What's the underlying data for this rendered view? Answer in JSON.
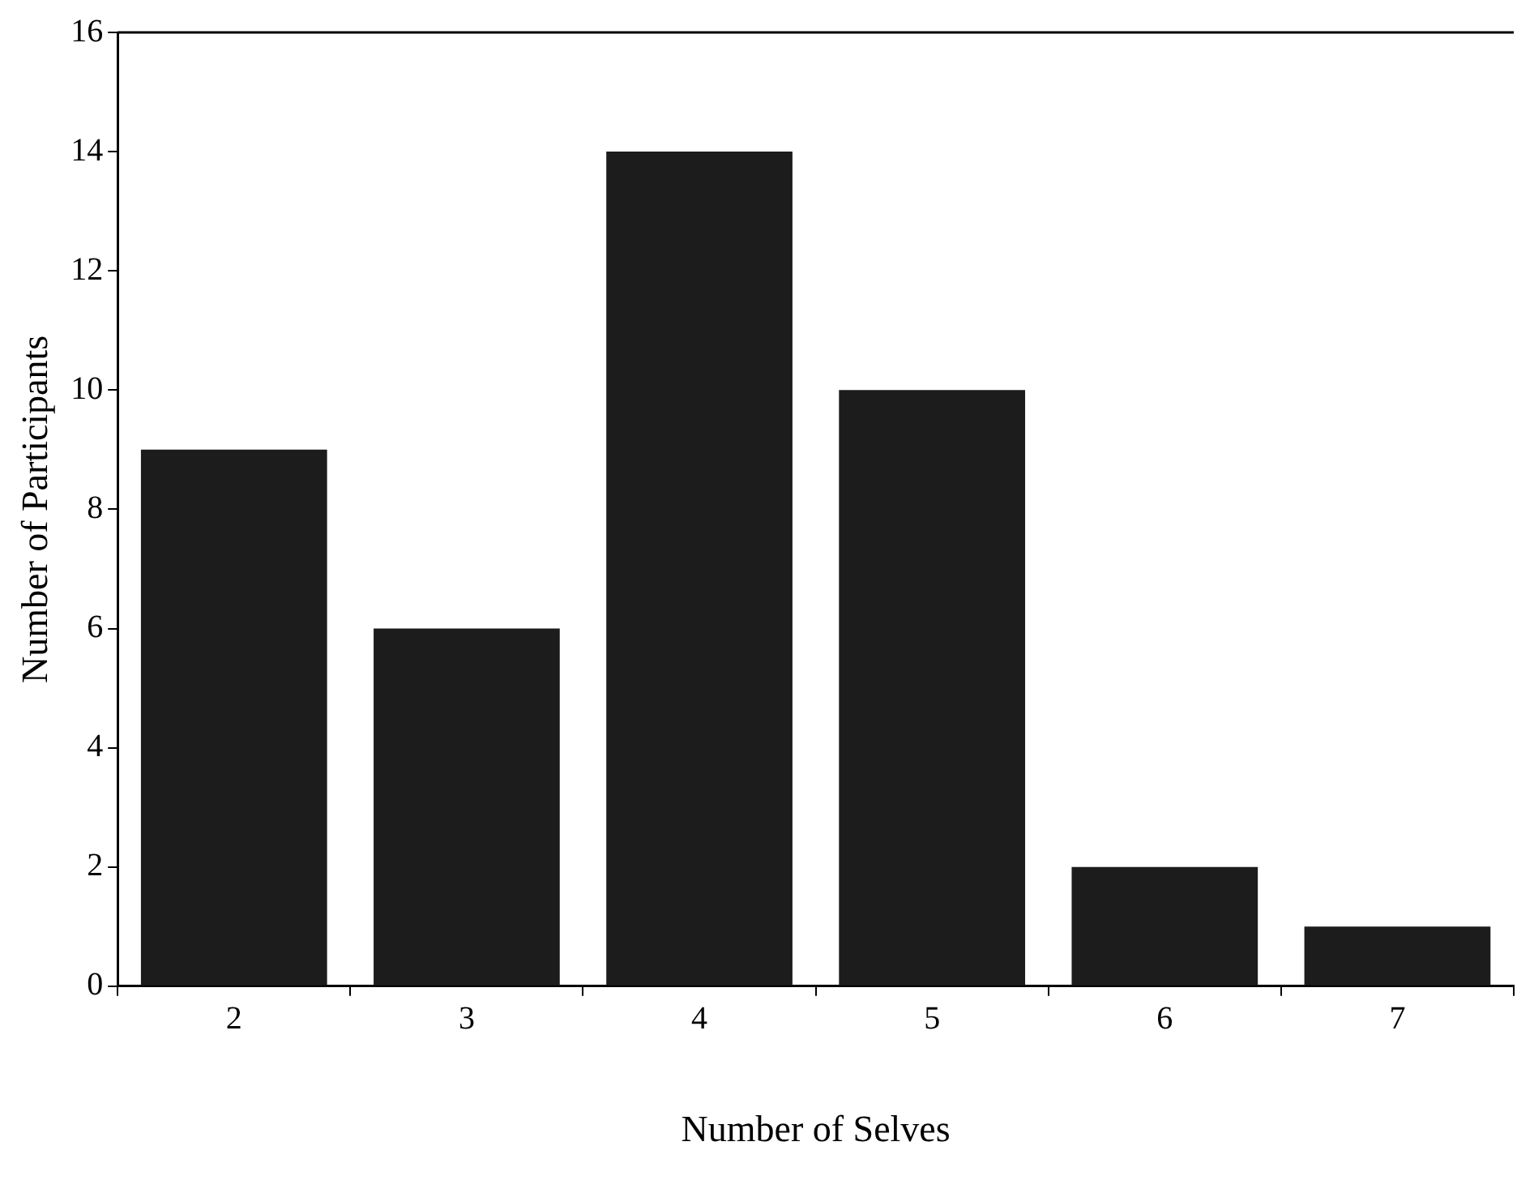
{
  "chart_data": {
    "type": "bar",
    "xlabel": "Number of Selves",
    "ylabel": "Number of Participants",
    "categories": [
      "2",
      "3",
      "4",
      "5",
      "6",
      "7"
    ],
    "values": [
      9,
      6,
      14,
      10,
      2,
      1
    ],
    "color": "#1c1c1c",
    "ylim": [
      0,
      16
    ],
    "yticks": [
      0,
      2,
      4,
      6,
      8,
      10,
      12,
      14,
      16
    ],
    "grid": false,
    "legend": false
  }
}
